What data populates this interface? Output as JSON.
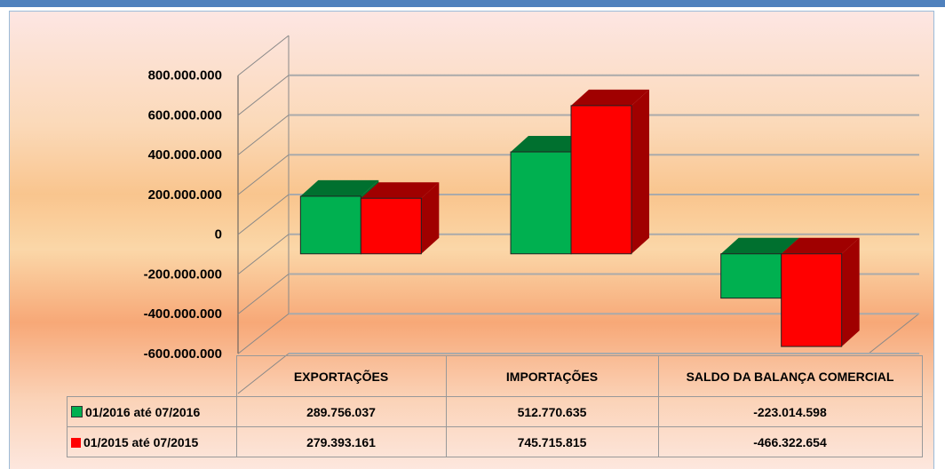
{
  "chart_data": {
    "type": "bar",
    "categories": [
      "EXPORTAÇÕES",
      "IMPORTAÇÕES",
      "SALDO DA BALANÇA COMERCIAL"
    ],
    "series": [
      {
        "name": "01/2016 até 07/2016",
        "color": "#00b050",
        "values": [
          289756037,
          512770635,
          -223014598
        ],
        "value_labels": [
          "289.756.037",
          "512.770.635",
          "-223.014.598"
        ]
      },
      {
        "name": "01/2015 até 07/2015",
        "color": "#ff0000",
        "values": [
          279393161,
          745715815,
          -466322654
        ],
        "value_labels": [
          "279.393.161",
          "745.715.815",
          "-466.322.654"
        ]
      }
    ],
    "ylim": [
      -600000000,
      1000000000
    ],
    "yticks": [
      {
        "value": -600000000,
        "label": "-600.000.000"
      },
      {
        "value": -400000000,
        "label": "-400.000.000"
      },
      {
        "value": -200000000,
        "label": "-200.000.000"
      },
      0,
      {
        "value": 200000000,
        "label": "200.000.000"
      },
      {
        "value": 400000000,
        "label": "400.000.000"
      },
      {
        "value": 600000000,
        "label": "600.000.000"
      },
      {
        "value": 800000000,
        "label": "800.000.000"
      }
    ],
    "grid": true
  }
}
